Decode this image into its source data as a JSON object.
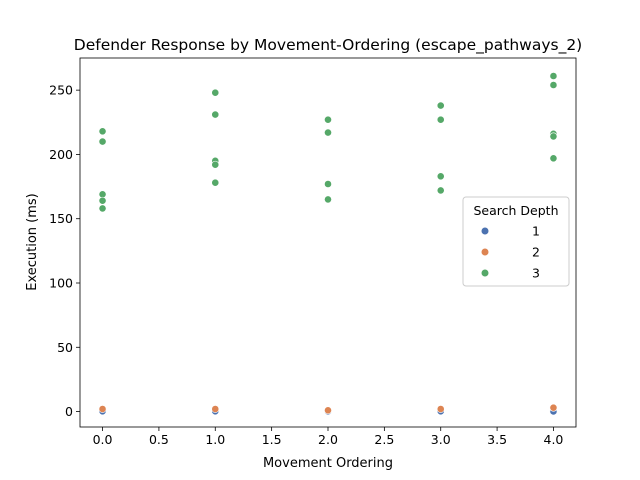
{
  "chart_data": {
    "type": "scatter",
    "title": "Defender Response by Movement-Ordering (escape_pathways_2)",
    "xlabel": "Movement Ordering",
    "ylabel": "Execution (ms)",
    "xlim": [
      -0.2,
      4.2
    ],
    "ylim": [
      -12,
      275
    ],
    "xticks": [
      0.0,
      0.5,
      1.0,
      1.5,
      2.0,
      2.5,
      3.0,
      3.5,
      4.0
    ],
    "xtick_labels": [
      "0.0",
      "0.5",
      "1.0",
      "1.5",
      "2.0",
      "2.5",
      "3.0",
      "3.5",
      "4.0"
    ],
    "yticks": [
      0,
      50,
      100,
      150,
      200,
      250
    ],
    "ytick_labels": [
      "0",
      "50",
      "100",
      "150",
      "200",
      "250"
    ],
    "grid": false,
    "legend": {
      "title": "Search Depth",
      "placement": "center-right"
    },
    "series": [
      {
        "name": "1",
        "color": "#4c72b0",
        "points": [
          [
            0,
            0.2
          ],
          [
            1,
            0.2
          ],
          [
            2,
            0.2
          ],
          [
            3,
            0.2
          ],
          [
            4,
            0.3
          ],
          [
            4,
            0.1
          ]
        ]
      },
      {
        "name": "2",
        "color": "#dd8452",
        "points": [
          [
            0,
            2
          ],
          [
            1,
            2
          ],
          [
            2,
            1
          ],
          [
            3,
            2
          ],
          [
            4,
            3
          ]
        ]
      },
      {
        "name": "3",
        "color": "#55a868",
        "points": [
          [
            0,
            218
          ],
          [
            0,
            210
          ],
          [
            0,
            169
          ],
          [
            0,
            164
          ],
          [
            0,
            158
          ],
          [
            1,
            248
          ],
          [
            1,
            231
          ],
          [
            1,
            195
          ],
          [
            1,
            192
          ],
          [
            1,
            178
          ],
          [
            2,
            227
          ],
          [
            2,
            217
          ],
          [
            2,
            177
          ],
          [
            2,
            165
          ],
          [
            3,
            238
          ],
          [
            3,
            227
          ],
          [
            3,
            183
          ],
          [
            3,
            172
          ],
          [
            4,
            261
          ],
          [
            4,
            254
          ],
          [
            4,
            216
          ],
          [
            4,
            214
          ],
          [
            4,
            197
          ]
        ]
      }
    ]
  }
}
